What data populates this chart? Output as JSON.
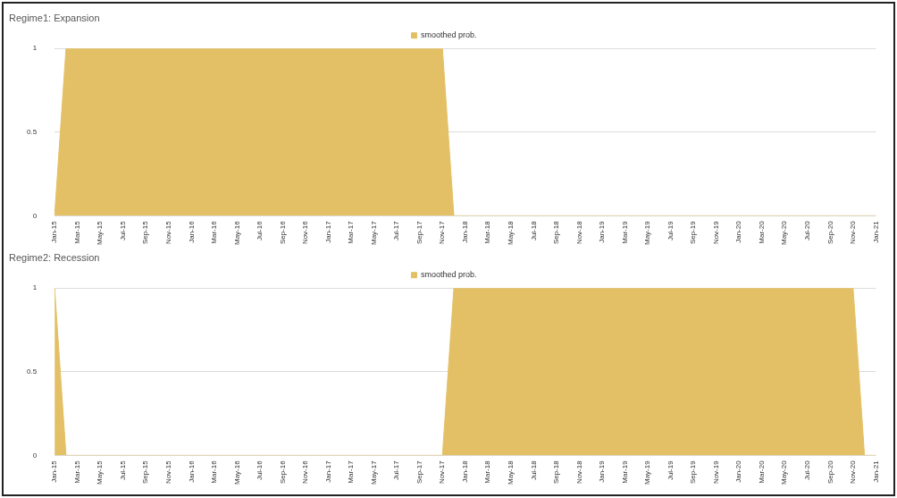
{
  "chart_data": [
    {
      "type": "area",
      "title": "Regime1: Expansion",
      "categories": [
        "Jan-15",
        null,
        "Mar-15",
        null,
        "May-15",
        null,
        "Jul-15",
        null,
        "Sep-15",
        null,
        "Nov-15",
        null,
        "Jan-16",
        null,
        "Mar-16",
        null,
        "May-16",
        null,
        "Jul-16",
        null,
        "Sep-16",
        null,
        "Nov-16",
        null,
        "Jan-17",
        null,
        "Mar-17",
        null,
        "May-17",
        null,
        "Jul-17",
        null,
        "Sep-17",
        null,
        "Nov-17",
        null,
        "Jan-18",
        null,
        "Mar-18",
        null,
        "May-18",
        null,
        "Jul-18",
        null,
        "Sep-18",
        null,
        "Nov-18",
        null,
        "Jan-19",
        null,
        "Mar-19",
        null,
        "May-19",
        null,
        "Jul-19",
        null,
        "Sep-19",
        null,
        "Nov-19",
        null,
        "Jan-20",
        null,
        "Mar-20",
        null,
        "May-20",
        null,
        "Jul-20",
        null,
        "Sep-20",
        null,
        "Nov-20",
        null,
        "Jan-21"
      ],
      "series": [
        {
          "name": "smoothed prob.",
          "color": "#e3c065",
          "values": [
            0,
            1,
            1,
            1,
            1,
            1,
            1,
            1,
            1,
            1,
            1,
            1,
            1,
            1,
            1,
            1,
            1,
            1,
            1,
            1,
            1,
            1,
            1,
            1,
            1,
            1,
            1,
            1,
            1,
            1,
            1,
            1,
            1,
            1,
            1,
            0,
            0,
            0,
            0,
            0,
            0,
            0,
            0,
            0,
            0,
            0,
            0,
            0,
            0,
            0,
            0,
            0,
            0,
            0,
            0,
            0,
            0,
            0,
            0,
            0,
            0,
            0,
            0,
            0,
            0,
            0,
            0,
            0,
            0,
            0,
            0,
            0,
            0
          ]
        }
      ],
      "ylim": [
        0,
        1
      ],
      "yticks": [
        0,
        0.5,
        1
      ],
      "grid": "y",
      "legend": "top",
      "marker": "none"
    },
    {
      "type": "area",
      "title": "Regime2: Recession",
      "categories": [
        "Jan-15",
        null,
        "Mar-15",
        null,
        "May-15",
        null,
        "Jul-15",
        null,
        "Sep-15",
        null,
        "Nov-15",
        null,
        "Jan-16",
        null,
        "Mar-16",
        null,
        "May-16",
        null,
        "Jul-16",
        null,
        "Sep-16",
        null,
        "Nov-16",
        null,
        "Jan-17",
        null,
        "Mar-17",
        null,
        "May-17",
        null,
        "Jul-17",
        null,
        "Sep-17",
        null,
        "Nov-17",
        null,
        "Jan-18",
        null,
        "Mar-18",
        null,
        "May-18",
        null,
        "Jul-18",
        null,
        "Sep-18",
        null,
        "Nov-18",
        null,
        "Jan-19",
        null,
        "Mar-19",
        null,
        "May-19",
        null,
        "Jul-19",
        null,
        "Sep-19",
        null,
        "Nov-19",
        null,
        "Jan-20",
        null,
        "Mar-20",
        null,
        "May-20",
        null,
        "Jul-20",
        null,
        "Sep-20",
        null,
        "Nov-20",
        null,
        "Jan-21"
      ],
      "series": [
        {
          "name": "smoothed prob.",
          "color": "#e3c065",
          "values": [
            1,
            0,
            0,
            0,
            0,
            0,
            0,
            0,
            0,
            0,
            0,
            0,
            0,
            0,
            0,
            0,
            0,
            0,
            0,
            0,
            0,
            0,
            0,
            0,
            0,
            0,
            0,
            0,
            0,
            0,
            0,
            0,
            0,
            0,
            0,
            1,
            1,
            1,
            1,
            1,
            1,
            1,
            1,
            1,
            1,
            1,
            1,
            1,
            1,
            1,
            1,
            1,
            1,
            1,
            1,
            1,
            1,
            1,
            1,
            1,
            1,
            1,
            1,
            1,
            1,
            1,
            1,
            1,
            1,
            1,
            1,
            0,
            0
          ]
        }
      ],
      "ylim": [
        0,
        1
      ],
      "yticks": [
        0,
        0.5,
        1
      ],
      "grid": "y",
      "legend": "top",
      "marker": "none"
    }
  ]
}
